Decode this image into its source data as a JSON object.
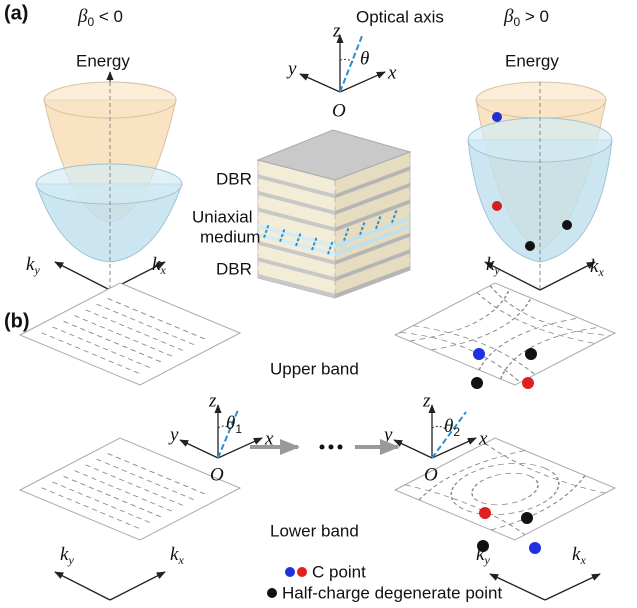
{
  "panel_a": {
    "label": "(a)",
    "left": {
      "beta": "β",
      "beta_sub": "0",
      "relation": " < 0",
      "energy": "Energy",
      "ky": "k",
      "ky_sub": "y",
      "kx": "k",
      "kx_sub": "x"
    },
    "axes": {
      "z": "z",
      "title": "Optical axis",
      "y": "y",
      "x": "x",
      "theta": "θ",
      "origin": "O"
    },
    "right": {
      "beta": "β",
      "beta_sub": "0",
      "relation": " > 0",
      "energy": "Energy",
      "ky": "k",
      "ky_sub": "y",
      "kx": "k",
      "kx_sub": "x"
    },
    "stack": {
      "dbr_top": "DBR",
      "medium_line1": "Uniaxial",
      "medium_line2": "medium",
      "dbr_bottom": "DBR"
    }
  },
  "panel_b": {
    "label": "(b)",
    "upper": "Upper band",
    "lower": "Lower band",
    "axes_left": {
      "z": "z",
      "y": "y",
      "x": "x",
      "theta": "θ",
      "theta_sub": "1",
      "origin": "O"
    },
    "axes_right": {
      "z": "z",
      "y": "y",
      "x": "x",
      "theta": "θ",
      "theta_sub": "2",
      "origin": "O"
    },
    "left_k": {
      "ky": "k",
      "ky_sub": "y",
      "kx": "k",
      "kx_sub": "x"
    },
    "right_k": {
      "ky": "k",
      "ky_sub": "y",
      "kx": "k",
      "kx_sub": "x"
    },
    "legend": {
      "c_point": "C point",
      "half_charge": "Half-charge degenerate point"
    }
  }
}
